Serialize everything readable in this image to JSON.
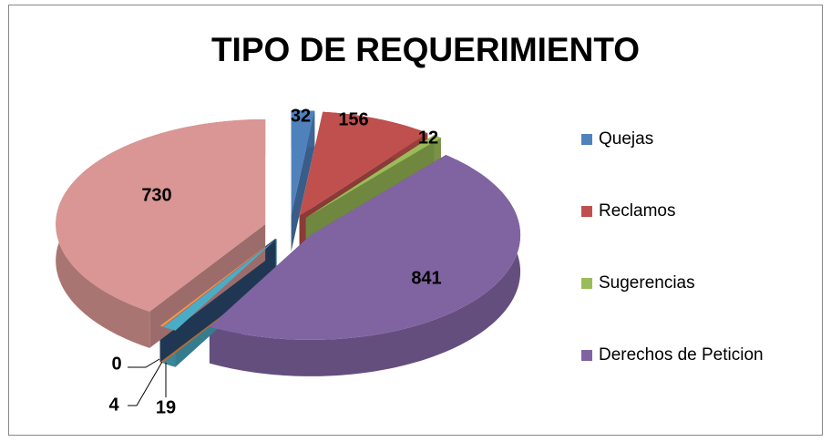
{
  "chart_data": {
    "type": "pie3d",
    "title": "TIPO DE REQUERIMIENTO",
    "categories": [
      "Quejas",
      "Reclamos",
      "Sugerencias",
      "Derechos de Peticion",
      null,
      null,
      null,
      null
    ],
    "values": [
      32,
      156,
      12,
      841,
      19,
      4,
      0,
      730
    ],
    "colors": [
      "#4f81bd",
      "#c0504d",
      "#9bbb59",
      "#8064a2",
      "#4bacc6",
      "#f79646",
      "#2c4d75",
      "#d99694"
    ],
    "legend": "right"
  }
}
